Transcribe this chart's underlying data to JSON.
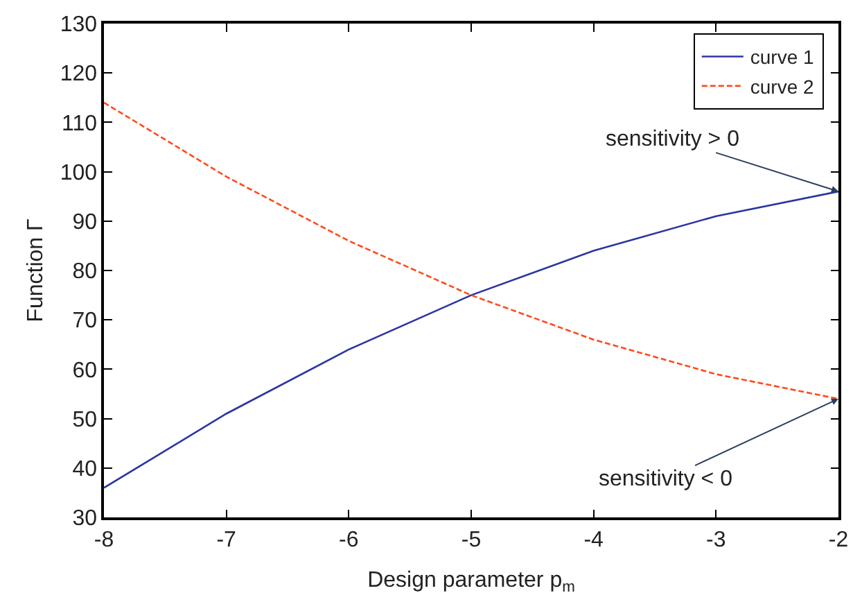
{
  "chart_data": {
    "type": "line",
    "xlabel": "Design parameter p$_{m}$",
    "ylabel": "Function Γ",
    "x": [
      -8,
      -7,
      -6,
      -5,
      -4,
      -3,
      -2
    ],
    "series": [
      {
        "name": "curve 1",
        "color": "#2b35a0",
        "values": [
          36,
          51,
          64,
          75,
          84,
          91,
          96
        ],
        "line_style": "solid"
      },
      {
        "name": "curve 2",
        "color": "#ff4a1c",
        "values": [
          114,
          99,
          86,
          75,
          66,
          59,
          54
        ],
        "line_style": "dashed"
      }
    ],
    "annotations": [
      {
        "text": "sensitivity > 0",
        "x": -2,
        "y": 96
      },
      {
        "text": "sensitivity < 0",
        "x": -2,
        "y": 54
      }
    ],
    "xlim": [
      -8,
      -2
    ],
    "xticks": [
      -8,
      -7,
      -6,
      -5,
      -4,
      -3,
      -2
    ],
    "ylim": [
      30,
      130
    ],
    "yticks": [
      30,
      40,
      50,
      60,
      70,
      80,
      90,
      100,
      110,
      120,
      130
    ],
    "legend": "top right",
    "marker": "none"
  }
}
